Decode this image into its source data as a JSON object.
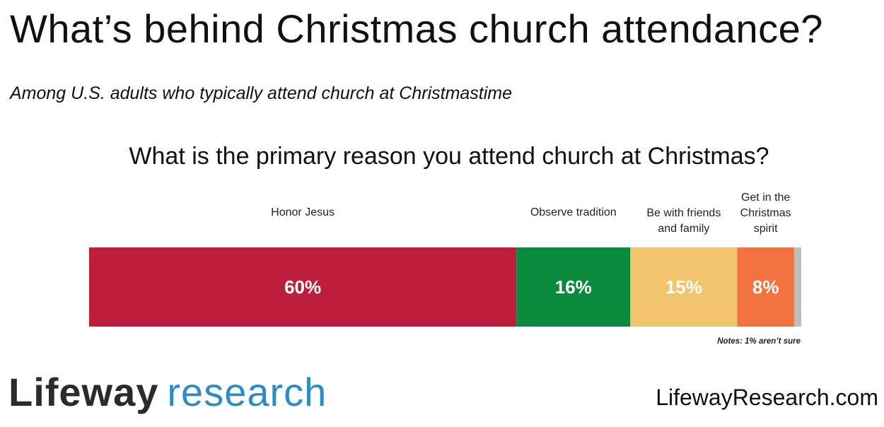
{
  "header": {
    "title": "What’s behind Christmas church attendance?",
    "subtitle": "Among U.S. adults who typically attend church at Christmastime"
  },
  "chart_data": {
    "type": "bar",
    "orientation": "horizontal-stacked",
    "title": "What is the primary reason you attend church at Christmas?",
    "categories": [
      "Honor Jesus",
      "Observe tradition",
      "Be with friends and family",
      "Get in the Christmas spirit",
      "Not sure"
    ],
    "values": [
      60,
      16,
      15,
      8,
      1
    ],
    "labels": [
      "60%",
      "16%",
      "15%",
      "8%",
      ""
    ],
    "colors": [
      "#be1e3c",
      "#0b8a3e",
      "#f2c46e",
      "#f27340",
      "#bdbdbd"
    ],
    "label_colors": [
      "#ffffff",
      "#ffffff",
      "#ffffff",
      "#ffffff",
      "#ffffff"
    ],
    "legend": "above-segments",
    "unit": "%",
    "xlim": [
      0,
      100
    ],
    "note": "Notes: 1% aren’t sure"
  },
  "footer": {
    "logo_word1": "Lifeway",
    "logo_word2": "research",
    "url": "LifewayResearch.com"
  }
}
